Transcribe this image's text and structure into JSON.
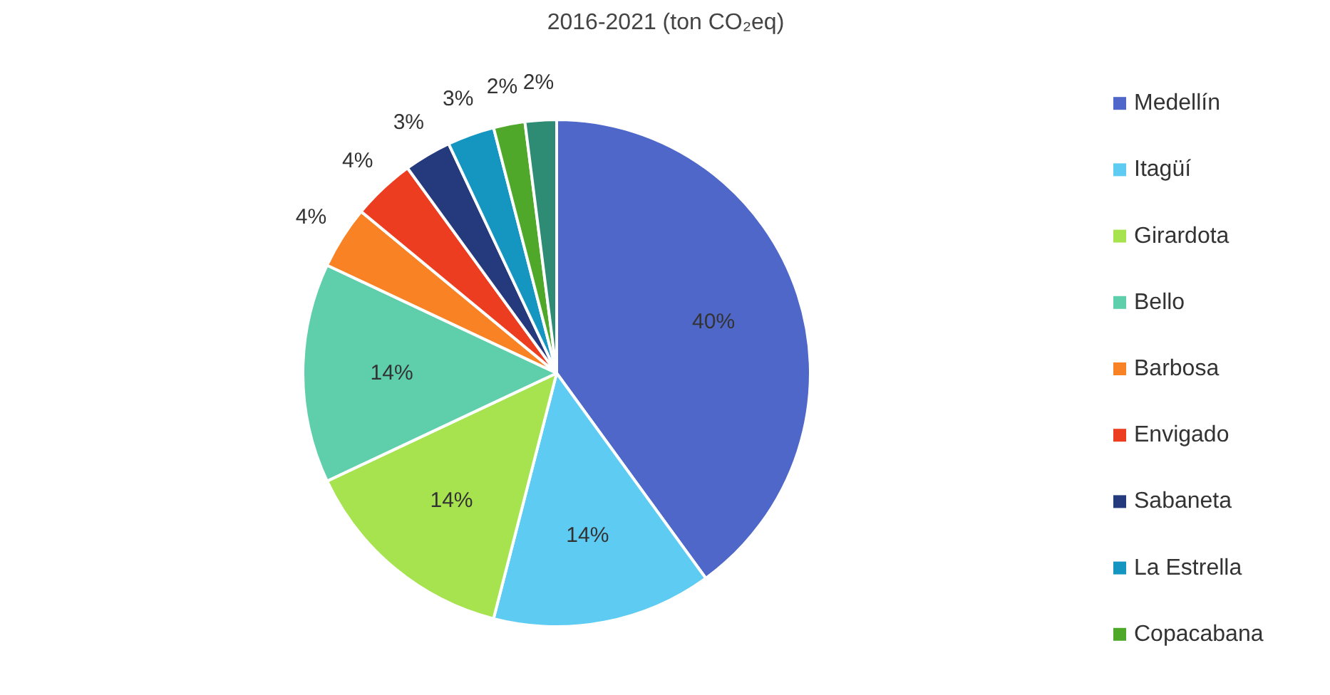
{
  "chart_data": {
    "type": "pie",
    "title": "2016-2021 (ton CO₂eq)",
    "categories": [
      "Medellín",
      "Itagüí",
      "Girardota",
      "Bello",
      "Barbosa",
      "Envigado",
      "Sabaneta",
      "La Estrella",
      "Copacabana",
      null
    ],
    "values": [
      40,
      14,
      14,
      14,
      4,
      4,
      3,
      3,
      2,
      2
    ],
    "colors": [
      "#4f67c9",
      "#5ecbf2",
      "#a6e34f",
      "#5ecfaa",
      "#f98224",
      "#ec3d21",
      "#253a7d",
      "#1596c0",
      "#4fa82a",
      "#2e8b74"
    ],
    "value_labels": [
      "40%",
      "14%",
      "14%",
      "14%",
      "4%",
      "4%",
      "3%",
      "3%",
      "2%",
      "2%"
    ],
    "legend": "right"
  }
}
